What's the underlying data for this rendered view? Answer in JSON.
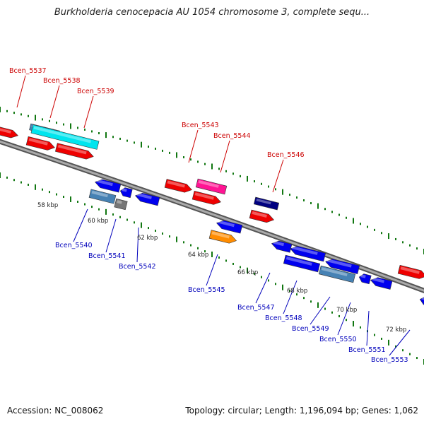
{
  "header": {
    "title": "Burkholderia cenocepacia AU 1054 chromosome 3, complete sequ..."
  },
  "footer": {
    "accession": "Accession: NC_008062",
    "summary": "Topology: circular; Length: 1,196,094 bp; Genes: 1,062"
  },
  "colors": {
    "top_label": "#cc0000",
    "bottom_label": "#0000bb",
    "red": "#ee0000",
    "cyan": "#00e5ee",
    "steelblue": "#4682b4",
    "blue": "#0000ee",
    "gray": "#777777",
    "pink": "#ff1493",
    "orange": "#ff8c00",
    "navy": "#000080",
    "tick_green": "#117711",
    "backbone": "#888888"
  },
  "scale_labels": [
    "58 kbp",
    "60 kbp",
    "62 kbp",
    "64 kbp",
    "66 kbp",
    "68 kbp",
    "70 kbp",
    "72 kbp"
  ],
  "top_labels": [
    "Bcen_5537",
    "Bcen_5538",
    "Bcen_5539",
    "Bcen_5543",
    "Bcen_5544",
    "Bcen_5546"
  ],
  "bottom_labels": [
    "Bcen_5540",
    "Bcen_5541",
    "Bcen_5542",
    "Bcen_5545",
    "Bcen_5547",
    "Bcen_5548",
    "Bcen_5549",
    "Bcen_5550",
    "Bcen_5551",
    "Bcen_5553"
  ]
}
